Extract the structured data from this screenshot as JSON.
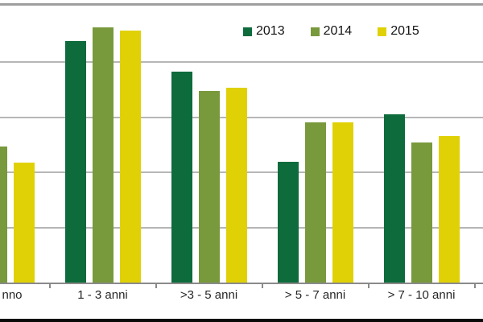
{
  "chart_data": {
    "type": "bar",
    "title": "",
    "xlabel": "",
    "ylabel": "",
    "categories": [
      "nno",
      "1 - 3 anni",
      ">3 - 5 anni",
      "> 5 - 7 anni",
      "> 7 - 10 anni"
    ],
    "series": [
      {
        "name": "2013",
        "color": "#0e6b3c",
        "values": [
          null,
          43.7,
          38.2,
          21.9,
          30.5
        ]
      },
      {
        "name": "2014",
        "color": "#78993c",
        "values": [
          24.7,
          46.2,
          34.7,
          29.1,
          25.4
        ]
      },
      {
        "name": "2015",
        "color": "#e0d106",
        "values": [
          21.8,
          45.6,
          35.3,
          29.1,
          26.6
        ]
      }
    ],
    "ylim": [
      0,
      50
    ],
    "gridline_step": 10,
    "grid": true,
    "y_axis_labels_visible": false,
    "legend_position": "top",
    "notes_layout": "left edge of chart is cropped: first category label and first 2013 bar are cut off"
  },
  "colors": {
    "background": "#ffffff",
    "gridline": "#b6b6b6",
    "axis": "#8a8a8a",
    "top_border": "#9e9e9e",
    "bottom_border": "#0a0a0a",
    "label_text": "#262626"
  }
}
